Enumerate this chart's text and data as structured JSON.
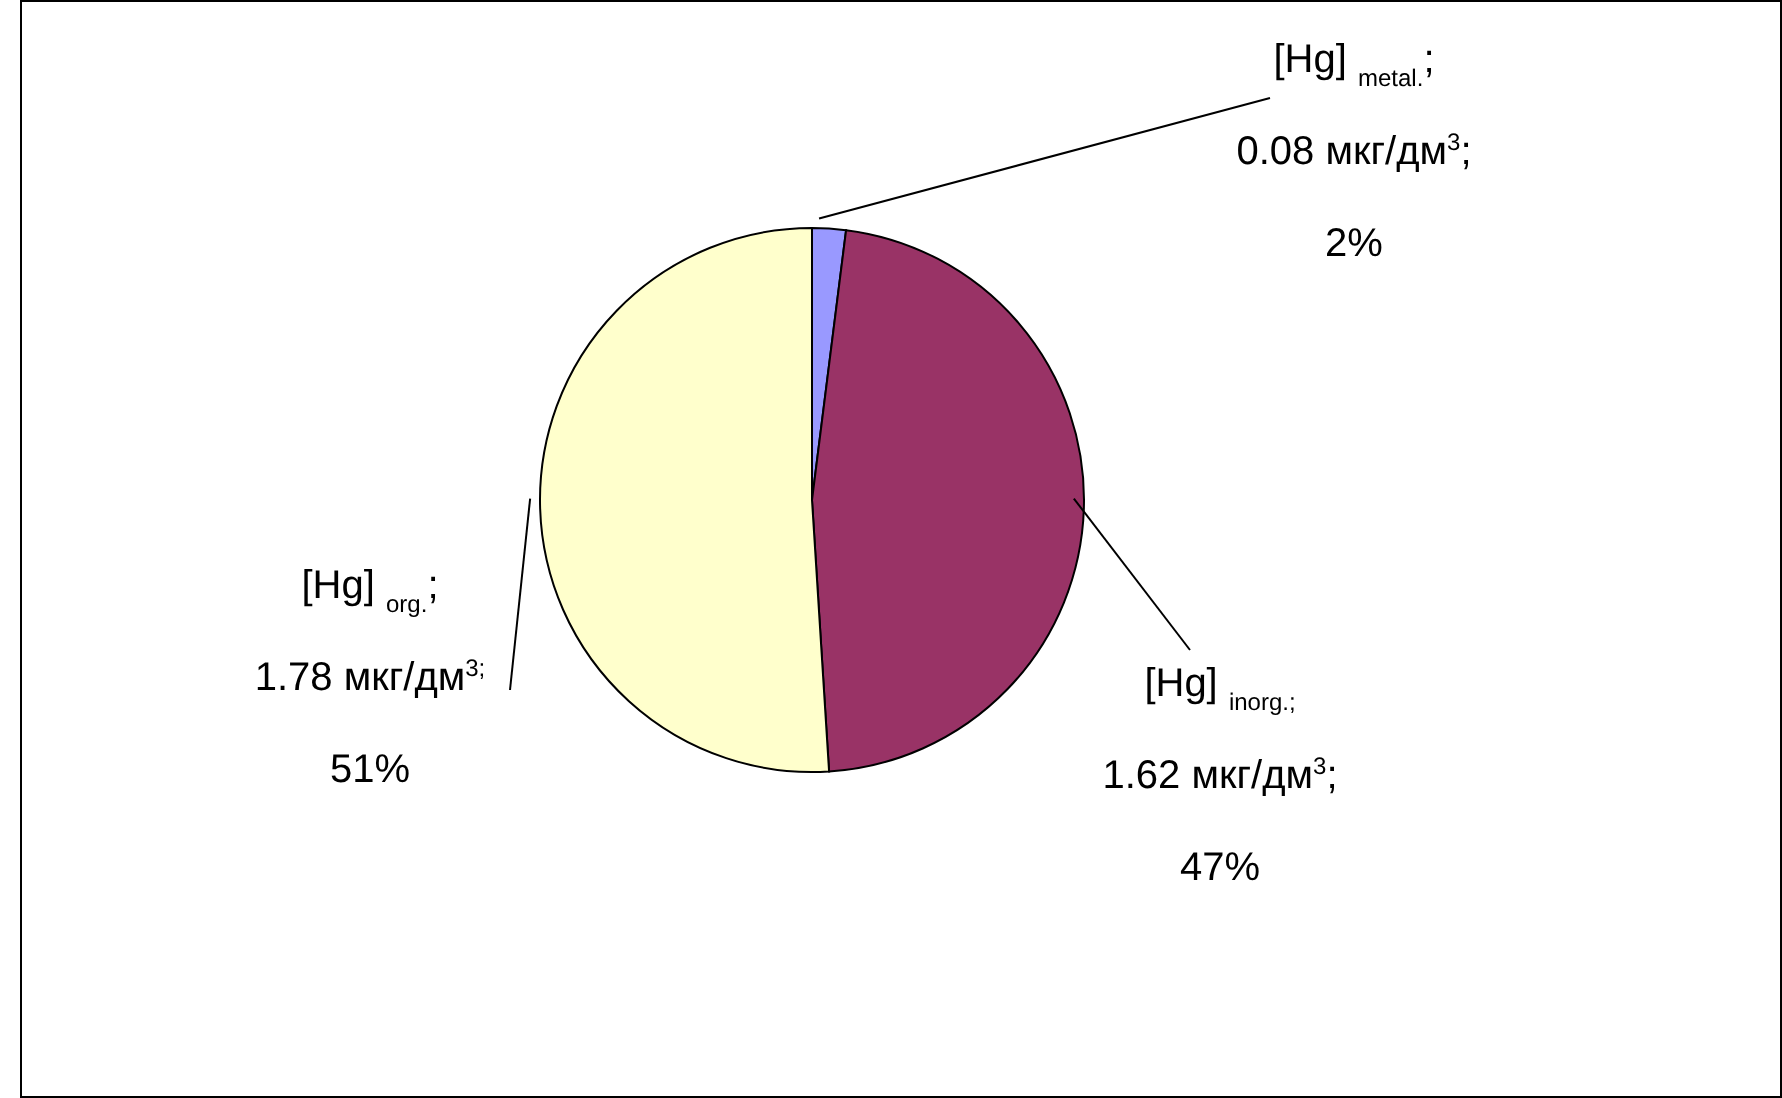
{
  "chart_data": {
    "type": "pie",
    "categories": [
      "[Hg] $_{metal.}$",
      "[Hg] $_{inorg.}$",
      "[Hg] $_{org.}$"
    ],
    "values": [
      2,
      47,
      51
    ],
    "colors": [
      "#9999ff",
      "#993366",
      "#ffffcc"
    ],
    "value_labels": [
      "; 0.08 мкг/дм$^{3}$; 2%",
      "$_{;}$ 1.62 мкг/дм$^{3}$; 47%",
      "; 1.78 мкг/дм$^{3;}$ 51%"
    ]
  }
}
